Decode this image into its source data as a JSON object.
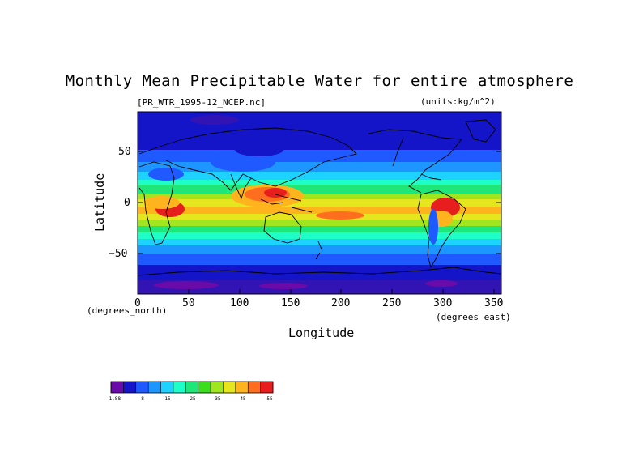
{
  "title": "Monthly Mean Precipitable Water for entire atmosphere",
  "file_label": "[PR_WTR_1995-12_NCEP.nc]",
  "units_label": "(units:kg/m^2)",
  "y_axis": {
    "label": "Latitude",
    "ticks": [
      "50",
      "0",
      "−50"
    ],
    "tick_values": [
      50,
      0,
      -50
    ],
    "range": [
      -90,
      90
    ],
    "units": "(degrees_north)"
  },
  "x_axis": {
    "label": "Longitude",
    "ticks": [
      "0",
      "50",
      "100",
      "150",
      "200",
      "250",
      "300",
      "350"
    ],
    "tick_values": [
      0,
      50,
      100,
      150,
      200,
      250,
      300,
      350
    ],
    "range": [
      0,
      357.5
    ],
    "units": "(degrees_east)"
  },
  "colorbar": {
    "labels": [
      "-1.88",
      "8",
      "15",
      "25",
      "35",
      "45",
      "55"
    ],
    "colors": [
      "#6a0aa8",
      "#1414c8",
      "#1e5aff",
      "#1e96ff",
      "#1ed2ff",
      "#1effc8",
      "#1ee678",
      "#3cdc1e",
      "#a0e61e",
      "#e6e61e",
      "#ffb41e",
      "#ff6e1e",
      "#e61e1e"
    ]
  },
  "map_colors": {
    "ocean_cold": "#1414c8",
    "polar": "#6a0aa8",
    "band_blue": "#1e5aff",
    "band_lightblue": "#1e96ff",
    "band_cyan": "#1ed2ff",
    "band_aqua": "#1effc8",
    "band_green": "#1ee678",
    "band_yellowgreen": "#a0e61e",
    "band_yellow": "#e6e61e",
    "band_orange": "#ffb41e",
    "band_red": "#e61e1e",
    "coast": "#000000"
  }
}
